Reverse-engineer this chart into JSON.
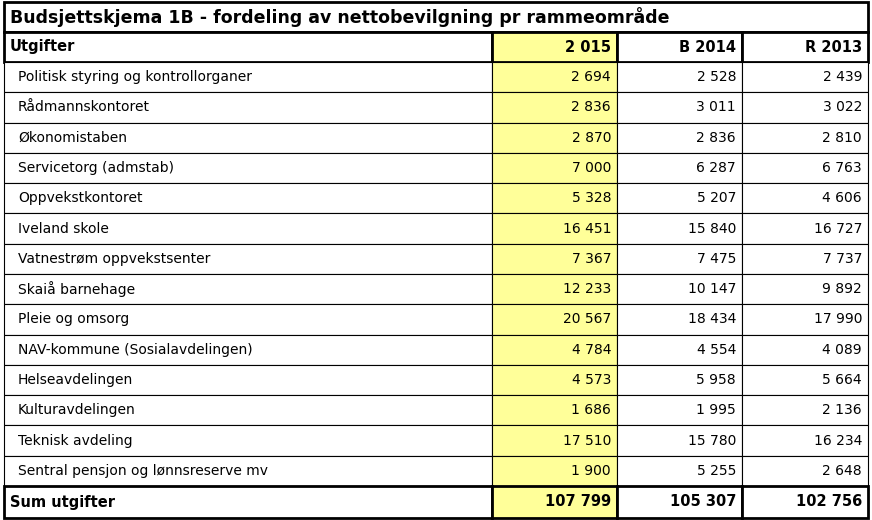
{
  "title": "Budsjettskjema 1B - fordeling av nettobevilgning pr rammeområde",
  "header_col": "Utgifter",
  "col_headers": [
    "2 015",
    "B 2014",
    "R 2013"
  ],
  "rows": [
    [
      "Politisk styring og kontrollorganer",
      "2 694",
      "2 528",
      "2 439"
    ],
    [
      "Rådmannskontoret",
      "2 836",
      "3 011",
      "3 022"
    ],
    [
      "Økonomistaben",
      "2 870",
      "2 836",
      "2 810"
    ],
    [
      "Servicetorg (admstab)",
      "7 000",
      "6 287",
      "6 763"
    ],
    [
      "Oppvekstkontoret",
      "5 328",
      "5 207",
      "4 606"
    ],
    [
      "Iveland skole",
      "16 451",
      "15 840",
      "16 727"
    ],
    [
      "Vatnestrøm oppvekstsenter",
      "7 367",
      "7 475",
      "7 737"
    ],
    [
      "Skaiå barnehage",
      "12 233",
      "10 147",
      "9 892"
    ],
    [
      "Pleie og omsorg",
      "20 567",
      "18 434",
      "17 990"
    ],
    [
      "NAV-kommune (Sosialavdelingen)",
      "4 784",
      "4 554",
      "4 089"
    ],
    [
      "Helseavdelingen",
      "4 573",
      "5 958",
      "5 664"
    ],
    [
      "Kulturavdelingen",
      "1 686",
      "1 995",
      "2 136"
    ],
    [
      "Teknisk avdeling",
      "17 510",
      "15 780",
      "16 234"
    ],
    [
      "Sentral pensjon og lønnsreserve mv",
      "1 900",
      "5 255",
      "2 648"
    ]
  ],
  "sum_row": [
    "Sum utgifter",
    "107 799",
    "105 307",
    "102 756"
  ],
  "col_yellow_bg": "#FFFF99",
  "border_color": "#000000",
  "thick_border": 2.0,
  "thin_border": 0.8,
  "title_fontsize": 12.5,
  "header_fontsize": 10.5,
  "cell_fontsize": 10.0,
  "sum_fontsize": 10.5,
  "fig_width": 8.72,
  "fig_height": 5.2,
  "dpi": 100
}
